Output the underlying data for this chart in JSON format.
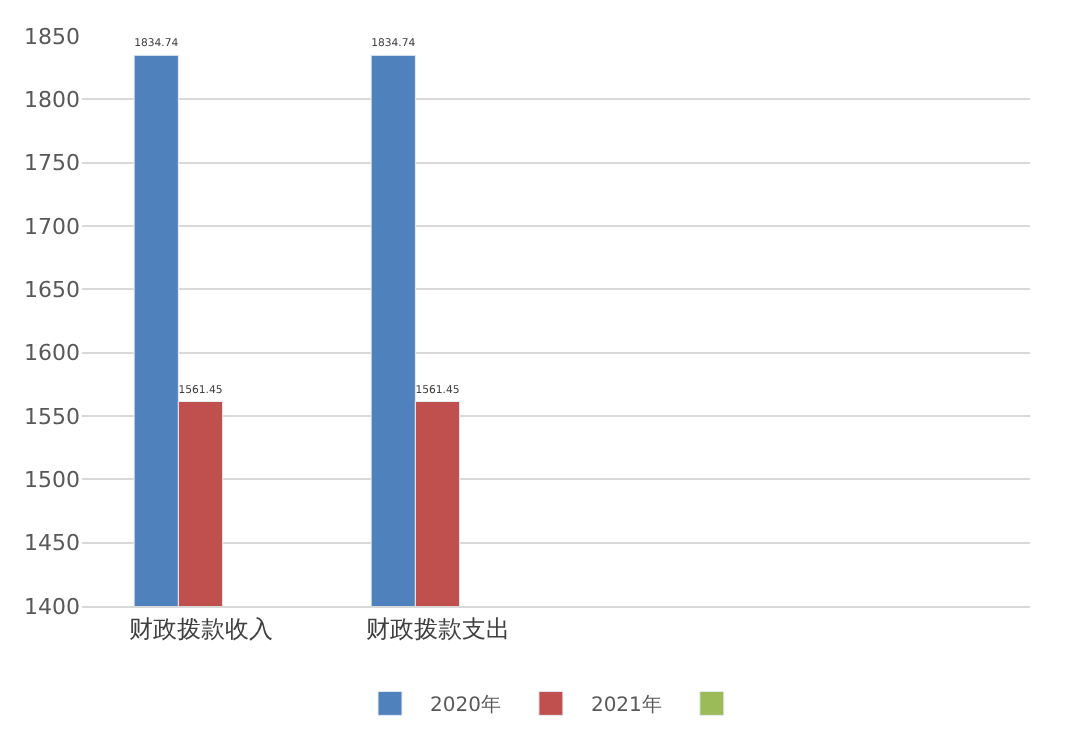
{
  "chart_data": {
    "type": "bar",
    "categories": [
      "财政拨款收入",
      "财政拨款支出",
      null,
      null
    ],
    "series": [
      {
        "name": "2020年",
        "color": "#4f81bd",
        "values": [
          1834.74,
          1834.74,
          null,
          null
        ]
      },
      {
        "name": "2021年",
        "color": "#c0504d",
        "values": [
          1561.45,
          1561.45,
          null,
          null
        ]
      },
      {
        "color": "#9bbb59",
        "values": [
          null,
          null,
          null,
          null
        ]
      }
    ],
    "ylim": [
      1400,
      1850
    ],
    "yticks": [
      1400,
      1450,
      1500,
      1550,
      1600,
      1650,
      1700,
      1750,
      1800,
      1850
    ],
    "grid": "y",
    "data_labels": true,
    "legend": "bottom"
  }
}
